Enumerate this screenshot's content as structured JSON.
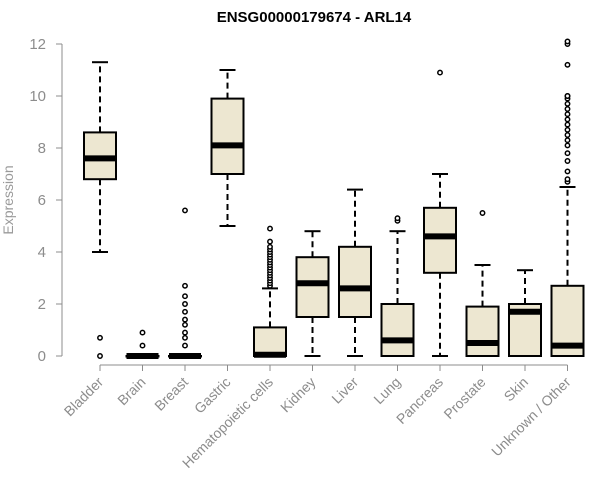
{
  "chart_data": {
    "type": "boxplot",
    "title": "ENSG00000179674 - ARL14",
    "xlabel": "",
    "ylabel": "Expression",
    "ylim": [
      0,
      12
    ],
    "yticks": [
      0,
      2,
      4,
      6,
      8,
      10,
      12
    ],
    "grid": false,
    "box_color": "#ede7d1",
    "categories": [
      "Bladder",
      "Brain",
      "Breast",
      "Gastric",
      "Hematopoietic cells",
      "Kidney",
      "Liver",
      "Lung",
      "Pancreas",
      "Prostate",
      "Skin",
      "Unknown / Other"
    ],
    "boxes": [
      {
        "category": "Bladder",
        "min": 4.0,
        "q1": 6.8,
        "median": 7.6,
        "q3": 8.6,
        "max": 11.3,
        "outliers": [
          0.7,
          0.0
        ]
      },
      {
        "category": "Brain",
        "min": 0.0,
        "q1": 0.0,
        "median": 0.0,
        "q3": 0.0,
        "max": 0.0,
        "outliers": [
          0.9,
          0.4
        ]
      },
      {
        "category": "Breast",
        "min": 0.0,
        "q1": 0.0,
        "median": 0.0,
        "q3": 0.0,
        "max": 0.0,
        "outliers": [
          5.6,
          2.7,
          2.3,
          2.0,
          1.7,
          1.4,
          1.2,
          0.9,
          0.7,
          0.4
        ]
      },
      {
        "category": "Gastric",
        "min": 5.0,
        "q1": 7.0,
        "median": 8.1,
        "q3": 9.9,
        "max": 11.0,
        "outliers": []
      },
      {
        "category": "Hematopoietic cells",
        "min": 0.0,
        "q1": 0.0,
        "median": 0.05,
        "q3": 1.1,
        "max": 2.6,
        "outliers": [
          2.7,
          2.8,
          2.9,
          3.0,
          3.1,
          3.2,
          3.3,
          3.4,
          3.5,
          3.6,
          3.7,
          3.8,
          3.9,
          4.0,
          4.1,
          4.2,
          4.4,
          4.9
        ]
      },
      {
        "category": "Kidney",
        "min": 0.0,
        "q1": 1.5,
        "median": 2.8,
        "q3": 3.8,
        "max": 4.8,
        "outliers": []
      },
      {
        "category": "Liver",
        "min": 0.0,
        "q1": 1.5,
        "median": 2.6,
        "q3": 4.2,
        "max": 6.4,
        "outliers": []
      },
      {
        "category": "Lung",
        "min": 0.0,
        "q1": 0.0,
        "median": 0.6,
        "q3": 2.0,
        "max": 4.8,
        "outliers": [
          5.2,
          5.3
        ]
      },
      {
        "category": "Pancreas",
        "min": 0.0,
        "q1": 3.2,
        "median": 4.6,
        "q3": 5.7,
        "max": 7.0,
        "outliers": [
          10.9
        ]
      },
      {
        "category": "Prostate",
        "min": 0.0,
        "q1": 0.0,
        "median": 0.5,
        "q3": 1.9,
        "max": 3.5,
        "outliers": [
          5.5
        ]
      },
      {
        "category": "Skin",
        "min": 0.0,
        "q1": 0.0,
        "median": 1.7,
        "q3": 2.0,
        "max": 3.3,
        "outliers": []
      },
      {
        "category": "Unknown / Other",
        "min": 0.0,
        "q1": 0.0,
        "median": 0.4,
        "q3": 2.7,
        "max": 6.5,
        "outliers": [
          6.7,
          6.8,
          7.1,
          7.5,
          7.8,
          8.1,
          8.3,
          8.5,
          8.7,
          8.9,
          9.1,
          9.3,
          9.5,
          9.7,
          9.9,
          10.0,
          10.0,
          11.2,
          12.0,
          12.1
        ]
      }
    ]
  }
}
